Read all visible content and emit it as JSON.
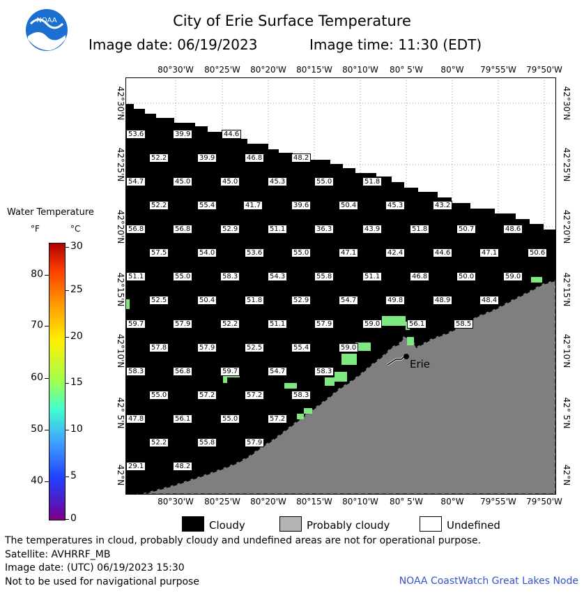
{
  "header": {
    "title": "City of Erie Surface Temperature",
    "image_date": "Image date: 06/19/2023",
    "image_time": "Image time: 11:30 (EDT)",
    "logo_text": "NOAA"
  },
  "map": {
    "lon_labels_top": [
      "80°30'W",
      "80°25'W",
      "80°20'W",
      "80°15'W",
      "80°10'W",
      "80° 5'W",
      "80°W",
      "79°55'W",
      "79°50'W"
    ],
    "lon_labels_bottom": [
      "80°30'W",
      "80°25'W",
      "80°20'W",
      "80°15'W",
      "80°10'W",
      "80° 5'W",
      "80°W",
      "79°55'W",
      "79°50'W"
    ],
    "lat_labels": [
      "42°30'N",
      "42°25'N",
      "42°20'N",
      "42°15'N",
      "42°10'N",
      "42° 5'N",
      "42°N"
    ],
    "city_label": "Erie",
    "temperature_labels": [
      "53.6",
      "39.9",
      "44.6",
      "52.2",
      "39.9",
      "46.8",
      "48.2",
      "54.7",
      "45.0",
      "45.0",
      "45.3",
      "55.0",
      "51.8",
      "52.2",
      "55.4",
      "41.7",
      "39.6",
      "50.4",
      "45.3",
      "43.2",
      "56.8",
      "56.8",
      "52.9",
      "51.1",
      "36.3",
      "43.9",
      "51.8",
      "50.7",
      "48.6",
      "57.5",
      "54.0",
      "53.6",
      "55.0",
      "47.1",
      "42.4",
      "44.6",
      "47.1",
      "50.6",
      "51.1",
      "55.0",
      "58.3",
      "54.3",
      "55.8",
      "51.1",
      "46.8",
      "50.0",
      "59.0",
      "52.5",
      "50.4",
      "51.8",
      "52.9",
      "54.7",
      "49.8",
      "48.9",
      "48.4",
      "59.7",
      "57.9",
      "52.2",
      "51.1",
      "57.9",
      "59.0",
      "56.1",
      "58.5",
      "57.8",
      "57.9",
      "52.5",
      "55.4",
      "59.0",
      "58.3",
      "56.8",
      "59.7",
      "54.7",
      "58.3",
      "55.0",
      "57.2",
      "57.2",
      "58.3",
      "47.8",
      "56.1",
      "55.0",
      "57.2",
      "52.2",
      "55.8",
      "57.9",
      "29.1",
      "48.2"
    ]
  },
  "legend": {
    "title": "Water Temperature",
    "unit_f": "°F",
    "unit_c": "°C",
    "f_ticks": [
      "80",
      "70",
      "60",
      "50",
      "40"
    ],
    "c_ticks": [
      "30",
      "25",
      "20",
      "15",
      "10",
      "5",
      "0"
    ],
    "colors": {
      "cloudy": "#000000",
      "probably_cloudy": "#b4b4b4",
      "undefined": "#ffffff",
      "land": "#7f7f7f"
    },
    "swatches": [
      "Cloudy",
      "Probably cloudy",
      "Undefined"
    ]
  },
  "footer": {
    "disclaimer": "The temperatures in cloud, probably cloudy and undefined areas are not for operational purpose.",
    "satellite": "Satellite: AVHRRF_MB",
    "utc_date": "Image date: (UTC) 06/19/2023  15:30",
    "navigation": "Not to be used for navigational purpose",
    "credit": "NOAA CoastWatch Great Lakes Node"
  }
}
